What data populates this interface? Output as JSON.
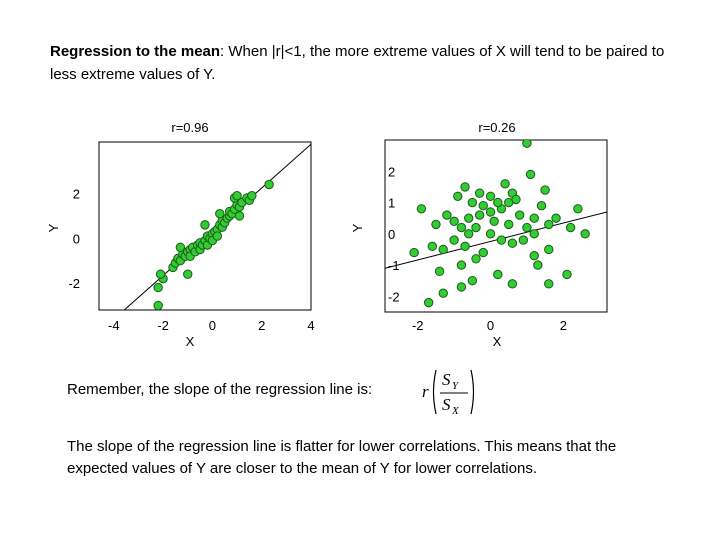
{
  "heading": {
    "bold_part": "Regression to the mean",
    "rest": ": When |r|<1, the more extreme  values of X will tend to be paired to less extreme values of Y."
  },
  "note": "Remember, the slope of the regression  line is:",
  "formula": {
    "r": "r",
    "num": "S",
    "num_sub": "Y",
    "den": "S",
    "den_sub": "X"
  },
  "conclusion": "The slope of the regression line is flatter for lower correlations.  This means that the expected values of Y are closer to the mean of Y for lower correlations.",
  "colors": {
    "point_fill": "#33cc33",
    "point_stroke": "#1a5c1a",
    "line": "#000000"
  },
  "chart_data": [
    {
      "type": "scatter",
      "title": "r=0.96",
      "xlabel": "X",
      "ylabel": "Y",
      "xlim": [
        -4.6,
        4.0
      ],
      "ylim": [
        -3.2,
        4.3
      ],
      "xticks": [
        -4,
        -2,
        0,
        2,
        4
      ],
      "yticks": [
        -2,
        0,
        2
      ],
      "regression_line": [
        [
          -4.6,
          -4.2
        ],
        [
          4.0,
          4.2
        ]
      ],
      "points": [
        [
          -2.2,
          -2.2
        ],
        [
          -2.0,
          -1.8
        ],
        [
          -2.1,
          -1.6
        ],
        [
          -1.6,
          -1.3
        ],
        [
          -1.5,
          -1.1
        ],
        [
          -1.4,
          -0.9
        ],
        [
          -1.3,
          -1.0
        ],
        [
          -1.2,
          -0.7
        ],
        [
          -1.1,
          -0.8
        ],
        [
          -1.0,
          -0.6
        ],
        [
          -0.9,
          -0.5
        ],
        [
          -0.9,
          -0.8
        ],
        [
          -0.8,
          -0.4
        ],
        [
          -0.7,
          -0.6
        ],
        [
          -0.6,
          -0.3
        ],
        [
          -0.5,
          -0.5
        ],
        [
          -0.5,
          -0.2
        ],
        [
          -0.4,
          -0.3
        ],
        [
          -0.3,
          -0.1
        ],
        [
          -0.2,
          0.1
        ],
        [
          -0.2,
          -0.3
        ],
        [
          -0.1,
          0.0
        ],
        [
          0.0,
          0.2
        ],
        [
          0.0,
          -0.1
        ],
        [
          0.1,
          0.3
        ],
        [
          0.2,
          0.4
        ],
        [
          0.2,
          0.1
        ],
        [
          0.3,
          0.6
        ],
        [
          0.4,
          0.5
        ],
        [
          0.4,
          0.8
        ],
        [
          0.5,
          0.7
        ],
        [
          0.6,
          0.9
        ],
        [
          0.7,
          1.0
        ],
        [
          0.7,
          1.2
        ],
        [
          0.8,
          1.1
        ],
        [
          0.9,
          1.3
        ],
        [
          1.0,
          1.5
        ],
        [
          1.1,
          1.4
        ],
        [
          1.2,
          1.6
        ],
        [
          1.4,
          1.8
        ],
        [
          1.5,
          1.7
        ],
        [
          1.6,
          1.9
        ],
        [
          2.3,
          2.4
        ],
        [
          0.3,
          1.1
        ],
        [
          0.9,
          1.8
        ],
        [
          1.1,
          1.0
        ],
        [
          1.0,
          1.9
        ],
        [
          -0.3,
          0.6
        ],
        [
          -1.0,
          -1.6
        ],
        [
          -1.3,
          -0.4
        ],
        [
          -2.2,
          -3.0
        ]
      ]
    },
    {
      "type": "scatter",
      "title": "r=0.26",
      "xlabel": "X",
      "ylabel": "Y",
      "xlim": [
        -2.9,
        3.2
      ],
      "ylim": [
        -2.5,
        3.0
      ],
      "xticks": [
        -2,
        0,
        2
      ],
      "yticks": [
        -2,
        -1,
        0,
        1,
        2
      ],
      "regression_line": [
        [
          -2.9,
          -1.1
        ],
        [
          3.2,
          0.7
        ]
      ],
      "points": [
        [
          -1.7,
          -2.2
        ],
        [
          -1.3,
          -1.9
        ],
        [
          -0.8,
          -1.7
        ],
        [
          -0.5,
          -1.5
        ],
        [
          0.2,
          -1.3
        ],
        [
          0.6,
          -1.6
        ],
        [
          1.6,
          -1.6
        ],
        [
          2.1,
          -1.3
        ],
        [
          -2.1,
          -0.6
        ],
        [
          -1.6,
          -0.4
        ],
        [
          -1.3,
          -0.5
        ],
        [
          -1.0,
          -0.2
        ],
        [
          -0.7,
          -0.4
        ],
        [
          -0.4,
          -0.8
        ],
        [
          -0.2,
          -0.6
        ],
        [
          0.3,
          -0.2
        ],
        [
          0.6,
          -0.3
        ],
        [
          1.2,
          -0.7
        ],
        [
          1.6,
          -0.5
        ],
        [
          -1.9,
          0.8
        ],
        [
          -1.5,
          0.3
        ],
        [
          -1.2,
          0.6
        ],
        [
          -1.0,
          0.4
        ],
        [
          -0.8,
          0.2
        ],
        [
          -0.6,
          0.5
        ],
        [
          -0.4,
          0.2
        ],
        [
          -0.3,
          0.6
        ],
        [
          -0.2,
          0.9
        ],
        [
          0.0,
          0.7
        ],
        [
          0.1,
          0.4
        ],
        [
          0.3,
          0.8
        ],
        [
          0.5,
          1.0
        ],
        [
          0.6,
          1.3
        ],
        [
          0.8,
          0.6
        ],
        [
          1.0,
          0.2
        ],
        [
          1.2,
          0.5
        ],
        [
          1.4,
          0.9
        ],
        [
          1.6,
          0.3
        ],
        [
          1.8,
          0.5
        ],
        [
          2.2,
          0.2
        ],
        [
          2.6,
          0.0
        ],
        [
          -0.9,
          1.2
        ],
        [
          -0.7,
          1.5
        ],
        [
          -0.5,
          1.0
        ],
        [
          -0.3,
          1.3
        ],
        [
          0.0,
          1.2
        ],
        [
          0.2,
          1.0
        ],
        [
          0.4,
          1.6
        ],
        [
          0.7,
          1.1
        ],
        [
          1.1,
          1.9
        ],
        [
          1.5,
          1.4
        ],
        [
          -0.8,
          -1.0
        ],
        [
          0.0,
          0.0
        ],
        [
          0.9,
          -0.2
        ],
        [
          -1.4,
          -1.2
        ],
        [
          1.3,
          -1.0
        ],
        [
          2.4,
          0.8
        ],
        [
          0.5,
          0.3
        ],
        [
          -0.6,
          0.0
        ],
        [
          1.0,
          2.9
        ],
        [
          1.2,
          0.0
        ]
      ]
    }
  ]
}
